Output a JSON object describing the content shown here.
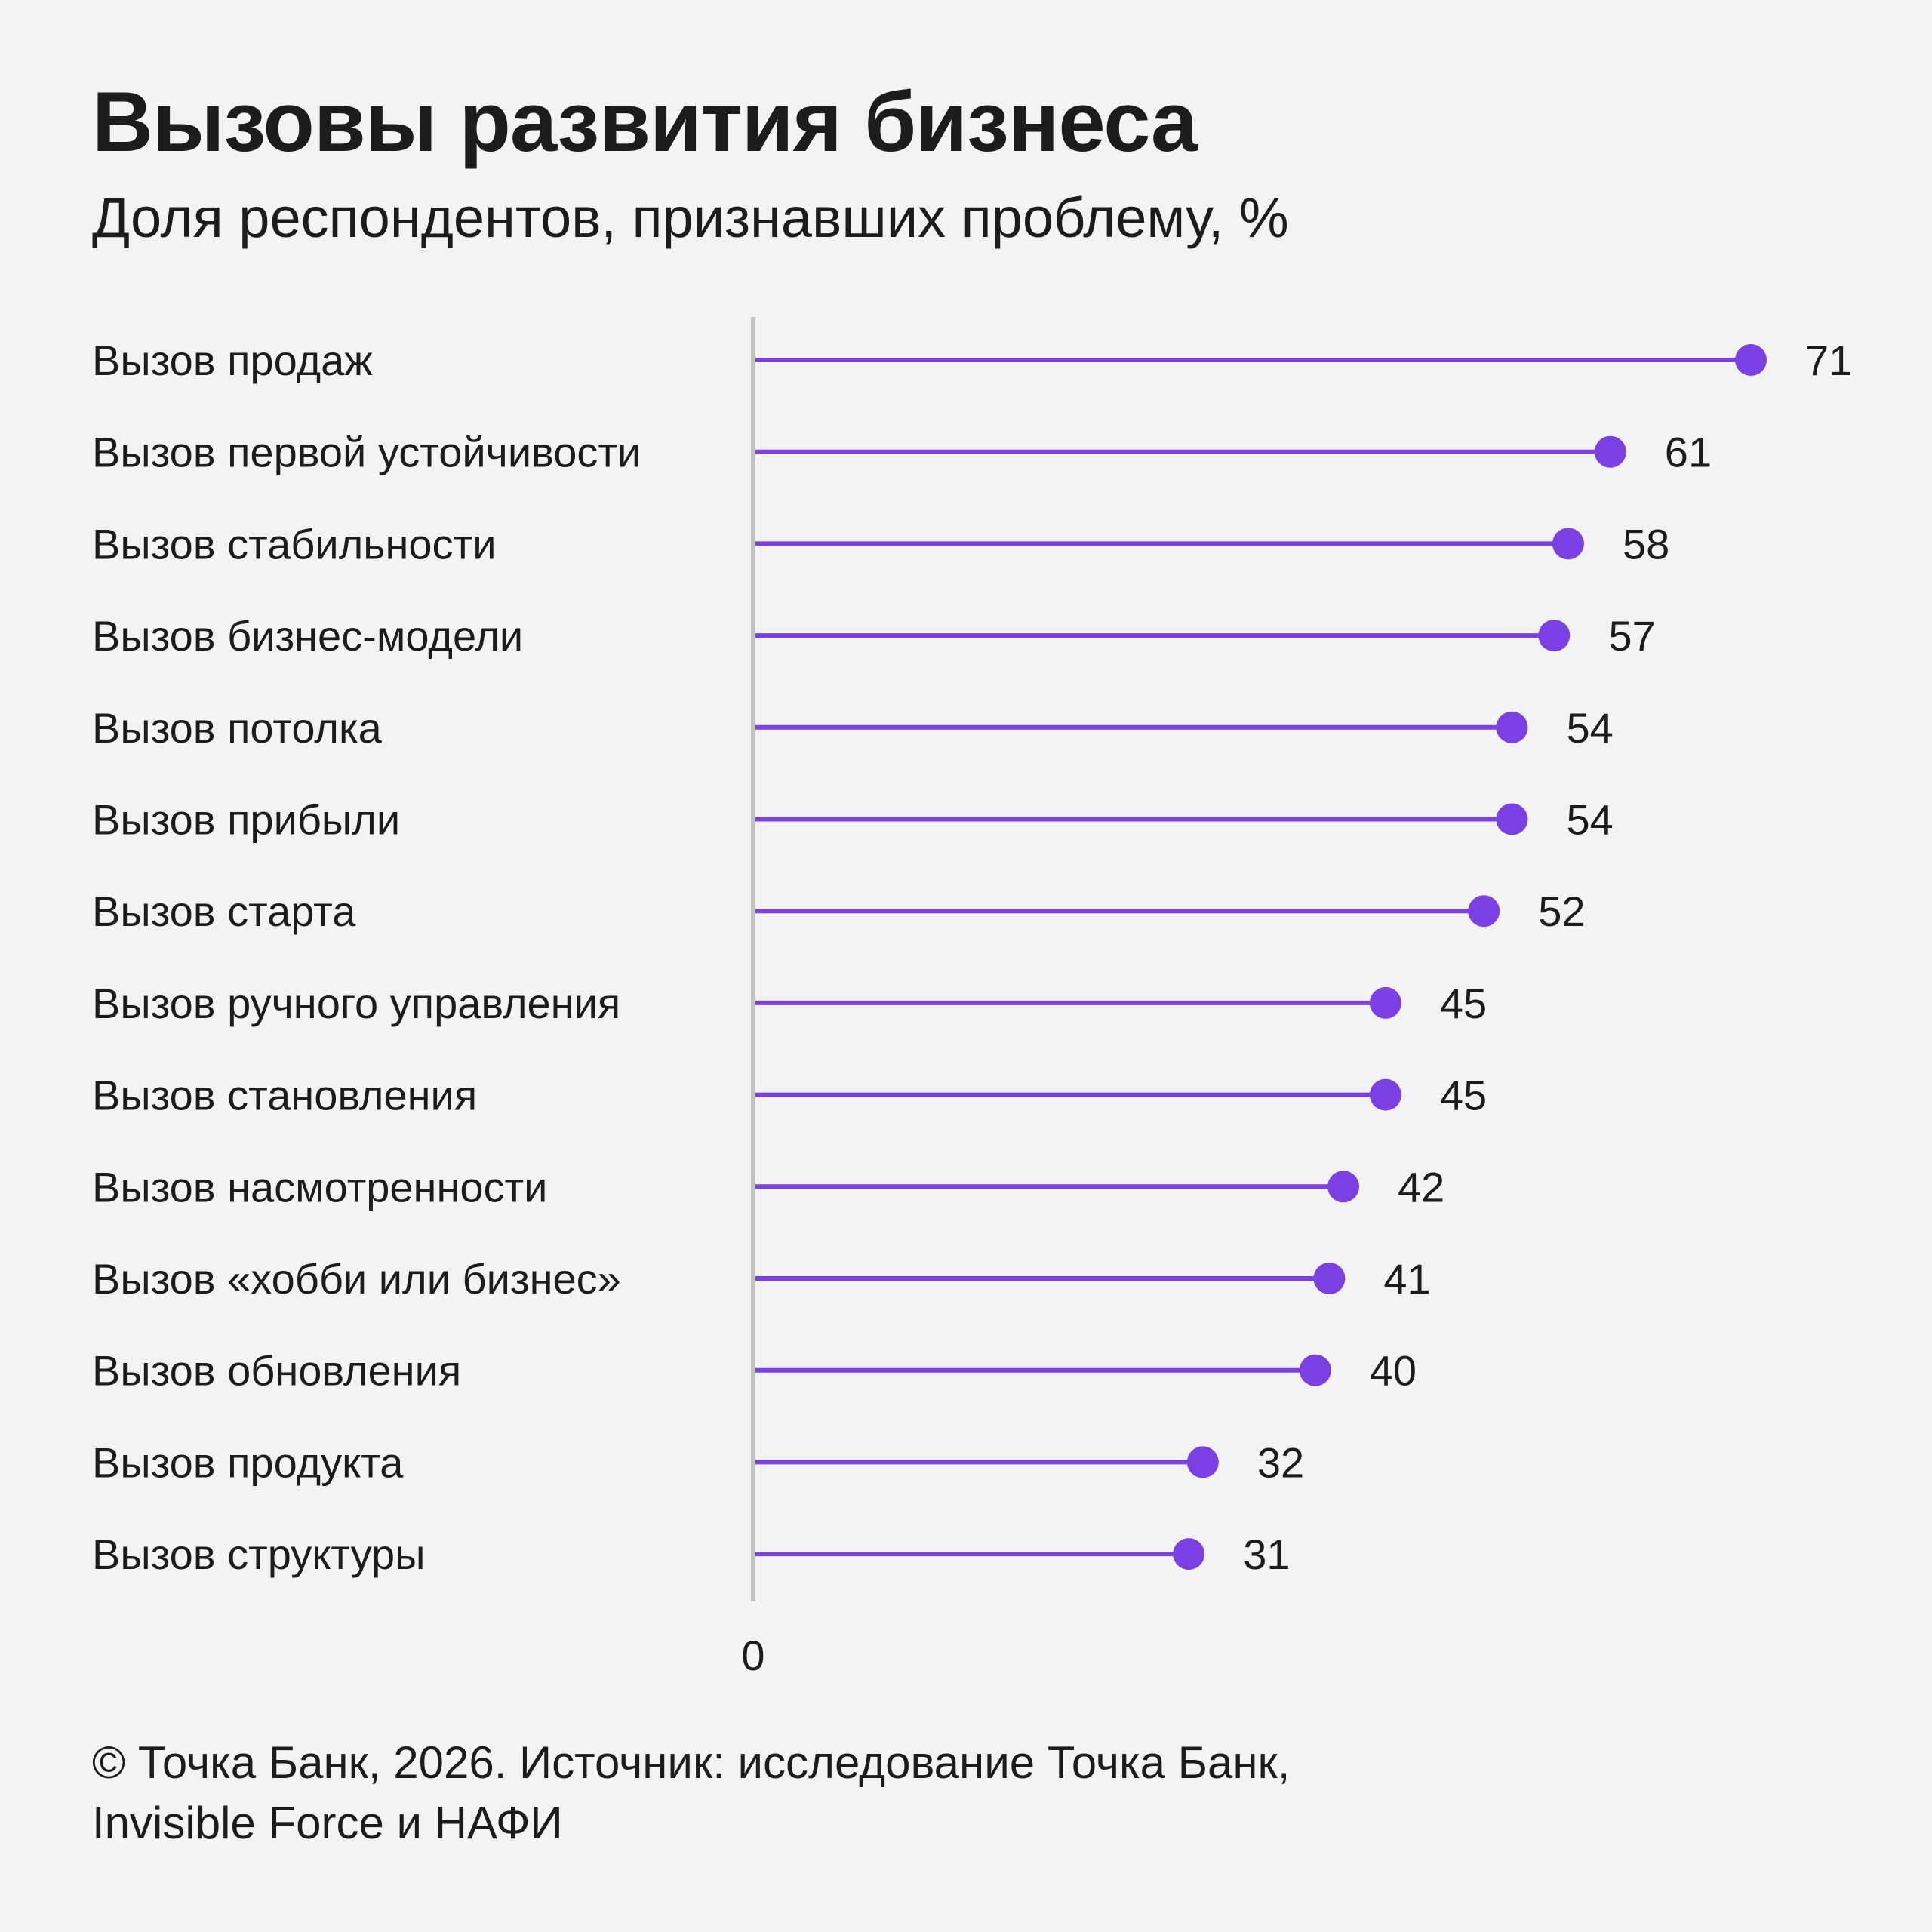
{
  "chart_data": {
    "type": "bar",
    "style": "lollipop",
    "orientation": "horizontal",
    "title": "Вызовы развития бизнеса",
    "subtitle": "Доля респондентов, признавших проблему, %",
    "categories": [
      "Вызов продаж",
      "Вызов первой устойчивости",
      "Вызов стабильности",
      "Вызов бизнес-модели",
      "Вызов потолка",
      "Вызов прибыли",
      "Вызов старта",
      "Вызов ручного управления",
      "Вызов становления",
      "Вызов насмотренности",
      "Вызов «хобби или бизнес»",
      "Вызов обновления",
      "Вызов продукта",
      "Вызов структуры"
    ],
    "values": [
      71,
      61,
      58,
      57,
      54,
      54,
      52,
      45,
      45,
      42,
      41,
      40,
      32,
      31
    ],
    "x_tick_labels": [
      "0"
    ],
    "xlim": [
      0,
      71
    ],
    "grid": false,
    "legend": "none",
    "colors": {
      "marker": "#7b3fe4",
      "axis": "#c2c2c2"
    }
  },
  "footer": {
    "line1": "© Точка Банк, 2026. Источник: исследование Точка Банк,",
    "line2": "Invisible Force и НАФИ"
  }
}
